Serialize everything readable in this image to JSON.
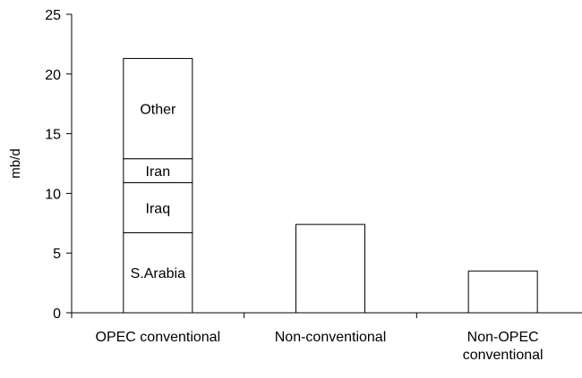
{
  "chart_data": {
    "type": "bar",
    "stacked": true,
    "ylabel": "mb/d",
    "ylim": [
      0,
      25
    ],
    "yticks": [
      0,
      5,
      10,
      15,
      20,
      25
    ],
    "grid": false,
    "categories": [
      {
        "label_lines": [
          "OPEC conventional"
        ]
      },
      {
        "label_lines": [
          "Non-conventional"
        ]
      },
      {
        "label_lines": [
          "Non-OPEC",
          "conventional"
        ]
      }
    ],
    "bars": [
      {
        "category_index": 0,
        "segments": [
          {
            "label": "S.Arabia",
            "value": 6.7
          },
          {
            "label": "Iraq",
            "value": 4.2
          },
          {
            "label": "Iran",
            "value": 2.0
          },
          {
            "label": "Other",
            "value": 8.4
          }
        ]
      },
      {
        "category_index": 1,
        "segments": [
          {
            "label": "",
            "value": 7.4
          }
        ]
      },
      {
        "category_index": 2,
        "segments": [
          {
            "label": "",
            "value": 3.5
          }
        ]
      }
    ],
    "bar_fill": "#ffffff",
    "bar_stroke": "#000000"
  }
}
